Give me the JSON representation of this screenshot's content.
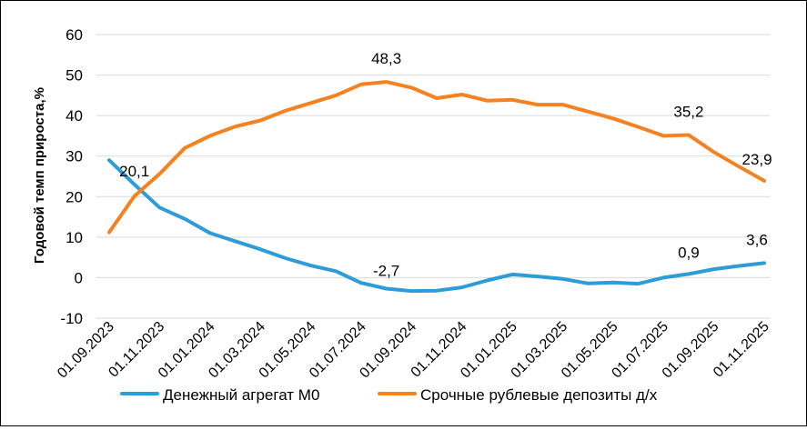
{
  "chart_data": {
    "type": "line",
    "title": "",
    "xlabel": "",
    "ylabel": "Годовой темп прироста,%",
    "ylim": [
      -10,
      60
    ],
    "yticks": [
      -10,
      0,
      10,
      20,
      30,
      40,
      50,
      60
    ],
    "grid": true,
    "legend": "bottom",
    "x_tick_labels": [
      "01.09.2023",
      "01.11.2023",
      "01.01.2024",
      "01.03.2024",
      "01.05.2024",
      "01.07.2024",
      "01.09.2024",
      "01.11.2024",
      "01.01.2025",
      "01.03.2025",
      "01.05.2025",
      "01.07.2025",
      "01.09.2025",
      "01.11.2025"
    ],
    "x": [
      "01.09.2023",
      "01.10.2023",
      "01.11.2023",
      "01.12.2023",
      "01.01.2024",
      "01.02.2024",
      "01.03.2024",
      "01.04.2024",
      "01.05.2024",
      "01.06.2024",
      "01.07.2024",
      "01.08.2024",
      "01.09.2024",
      "01.10.2024",
      "01.11.2024",
      "01.12.2024",
      "01.01.2025",
      "01.02.2025",
      "01.03.2025",
      "01.04.2025",
      "01.05.2025",
      "01.06.2025",
      "01.07.2025",
      "01.08.2025",
      "01.09.2025",
      "01.10.2025",
      "01.11.2025"
    ],
    "series": [
      {
        "name": "Денежный агрегат М0",
        "color": "#2E9CD8",
        "values": [
          29.0,
          23.0,
          17.3,
          14.5,
          11.0,
          9.0,
          7.0,
          4.8,
          3.0,
          1.6,
          -1.3,
          -2.7,
          -3.3,
          -3.2,
          -2.4,
          -0.7,
          0.8,
          0.3,
          -0.3,
          -1.4,
          -1.2,
          -1.5,
          0.0,
          0.9,
          2.1,
          2.9,
          3.6
        ]
      },
      {
        "name": "Срочные рублевые депозиты д/х",
        "color": "#F58220",
        "values": [
          11.2,
          20.1,
          25.6,
          32.0,
          35.0,
          37.3,
          38.8,
          41.2,
          43.1,
          45.0,
          47.7,
          48.3,
          46.9,
          44.3,
          45.2,
          43.7,
          43.9,
          42.7,
          42.7,
          41.0,
          39.3,
          37.2,
          35.0,
          35.2,
          31.0,
          27.4,
          23.9
        ]
      }
    ],
    "annotations": [
      {
        "series": 1,
        "index": 1,
        "text": "20,1"
      },
      {
        "series": 1,
        "index": 11,
        "text": "48,3"
      },
      {
        "series": 1,
        "index": 23,
        "text": "35,2"
      },
      {
        "series": 1,
        "index": 26,
        "text": "23,9"
      },
      {
        "series": 0,
        "index": 11,
        "text": "-2,7"
      },
      {
        "series": 0,
        "index": 23,
        "text": "0,9"
      },
      {
        "series": 0,
        "index": 26,
        "text": "3,6"
      }
    ]
  }
}
